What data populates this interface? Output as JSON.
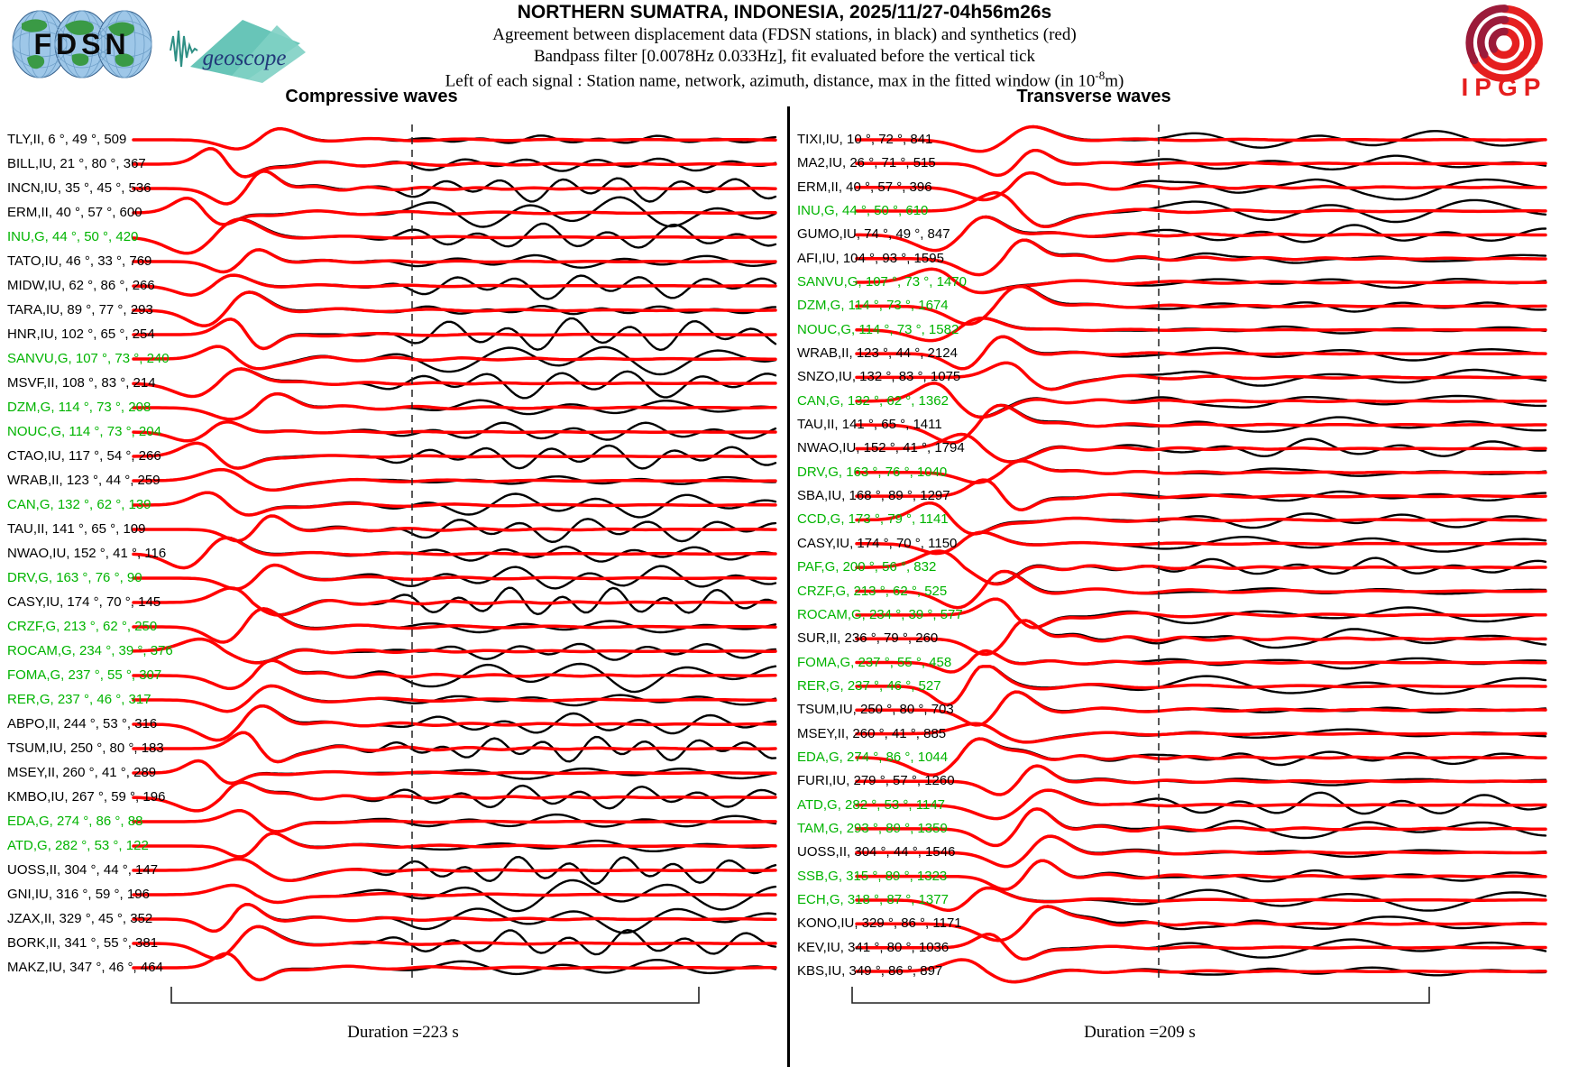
{
  "header": {
    "title": "NORTHERN SUMATRA, INDONESIA, 2025/11/27-04h56m26s",
    "subtitle1": "Agreement between displacement data (FDSN stations, in black) and synthetics (red)",
    "subtitle2": "Bandpass filter [0.0078Hz 0.033Hz], fit evaluated before the vertical tick",
    "subtitle3_pre": "Left of each signal : Station name, network, azimuth, distance, max in the fitted window (in 10",
    "subtitle3_exp": "-8",
    "subtitle3_post": "m)",
    "logos": {
      "fdsn": "FDSN",
      "geoscope": "geoscope",
      "ipgp": "IPGP"
    }
  },
  "colors": {
    "synthetic_trace": "#ff0000",
    "data_trace": "#000000",
    "geoscope_station_label": "#00b400",
    "standard_station_label": "#000000",
    "ipgp_red": "#e51f1f",
    "ipgp_dark": "#9b1b3a",
    "geoscope_teal": "#58bfb0"
  },
  "columns": [
    {
      "title": "Compressive waves",
      "duration_label": "Duration =223 s",
      "duration_s": 223,
      "stations": [
        {
          "sta": "TLY",
          "net": "II",
          "az": 6,
          "dist": 49,
          "max": 509
        },
        {
          "sta": "BILL",
          "net": "IU",
          "az": 21,
          "dist": 80,
          "max": 367
        },
        {
          "sta": "INCN",
          "net": "IU",
          "az": 35,
          "dist": 45,
          "max": 536
        },
        {
          "sta": "ERM",
          "net": "II",
          "az": 40,
          "dist": 57,
          "max": 600
        },
        {
          "sta": "INU",
          "net": "G",
          "az": 44,
          "dist": 50,
          "max": 420
        },
        {
          "sta": "TATO",
          "net": "IU",
          "az": 46,
          "dist": 33,
          "max": 769
        },
        {
          "sta": "MIDW",
          "net": "IU",
          "az": 62,
          "dist": 86,
          "max": 266
        },
        {
          "sta": "TARA",
          "net": "IU",
          "az": 89,
          "dist": 77,
          "max": 293
        },
        {
          "sta": "HNR",
          "net": "IU",
          "az": 102,
          "dist": 65,
          "max": 254
        },
        {
          "sta": "SANVU",
          "net": "G",
          "az": 107,
          "dist": 73,
          "max": 240
        },
        {
          "sta": "MSVF",
          "net": "II",
          "az": 108,
          "dist": 83,
          "max": 214
        },
        {
          "sta": "DZM",
          "net": "G",
          "az": 114,
          "dist": 73,
          "max": 208
        },
        {
          "sta": "NOUC",
          "net": "G",
          "az": 114,
          "dist": 73,
          "max": 204
        },
        {
          "sta": "CTAO",
          "net": "IU",
          "az": 117,
          "dist": 54,
          "max": 266
        },
        {
          "sta": "WRAB",
          "net": "II",
          "az": 123,
          "dist": 44,
          "max": 259
        },
        {
          "sta": "CAN",
          "net": "G",
          "az": 132,
          "dist": 62,
          "max": 139
        },
        {
          "sta": "TAU",
          "net": "II",
          "az": 141,
          "dist": 65,
          "max": 109
        },
        {
          "sta": "NWAO",
          "net": "IU",
          "az": 152,
          "dist": 41,
          "max": 116
        },
        {
          "sta": "DRV",
          "net": "G",
          "az": 163,
          "dist": 76,
          "max": 90
        },
        {
          "sta": "CASY",
          "net": "IU",
          "az": 174,
          "dist": 70,
          "max": 145
        },
        {
          "sta": "CRZF",
          "net": "G",
          "az": 213,
          "dist": 62,
          "max": 250
        },
        {
          "sta": "ROCAM",
          "net": "G",
          "az": 234,
          "dist": 39,
          "max": 376
        },
        {
          "sta": "FOMA",
          "net": "G",
          "az": 237,
          "dist": 55,
          "max": 307
        },
        {
          "sta": "RER",
          "net": "G",
          "az": 237,
          "dist": 46,
          "max": 317
        },
        {
          "sta": "ABPO",
          "net": "II",
          "az": 244,
          "dist": 53,
          "max": 316
        },
        {
          "sta": "TSUM",
          "net": "IU",
          "az": 250,
          "dist": 80,
          "max": 183
        },
        {
          "sta": "MSEY",
          "net": "II",
          "az": 260,
          "dist": 41,
          "max": 289
        },
        {
          "sta": "KMBO",
          "net": "IU",
          "az": 267,
          "dist": 59,
          "max": 196
        },
        {
          "sta": "EDA",
          "net": "G",
          "az": 274,
          "dist": 86,
          "max": 88
        },
        {
          "sta": "ATD",
          "net": "G",
          "az": 282,
          "dist": 53,
          "max": 122
        },
        {
          "sta": "UOSS",
          "net": "II",
          "az": 304,
          "dist": 44,
          "max": 147
        },
        {
          "sta": "GNI",
          "net": "IU",
          "az": 316,
          "dist": 59,
          "max": 196
        },
        {
          "sta": "JZAX",
          "net": "II",
          "az": 329,
          "dist": 45,
          "max": 352
        },
        {
          "sta": "BORK",
          "net": "II",
          "az": 341,
          "dist": 55,
          "max": 381
        },
        {
          "sta": "MAKZ",
          "net": "IU",
          "az": 347,
          "dist": 46,
          "max": 464
        }
      ]
    },
    {
      "title": "Transverse waves",
      "duration_label": "Duration =209 s",
      "duration_s": 209,
      "stations": [
        {
          "sta": "TIXI",
          "net": "IU",
          "az": 10,
          "dist": 72,
          "max": 841
        },
        {
          "sta": "MA2",
          "net": "IU",
          "az": 26,
          "dist": 71,
          "max": 515
        },
        {
          "sta": "ERM",
          "net": "II",
          "az": 40,
          "dist": 57,
          "max": 396
        },
        {
          "sta": "INU",
          "net": "G",
          "az": 44,
          "dist": 50,
          "max": 610
        },
        {
          "sta": "GUMO",
          "net": "IU",
          "az": 74,
          "dist": 49,
          "max": 847
        },
        {
          "sta": "AFI",
          "net": "IU",
          "az": 104,
          "dist": 93,
          "max": 1595
        },
        {
          "sta": "SANVU",
          "net": "G",
          "az": 107,
          "dist": 73,
          "max": 1470
        },
        {
          "sta": "DZM",
          "net": "G",
          "az": 114,
          "dist": 73,
          "max": 1674
        },
        {
          "sta": "NOUC",
          "net": "G",
          "az": 114,
          "dist": 73,
          "max": 1582
        },
        {
          "sta": "WRAB",
          "net": "II",
          "az": 123,
          "dist": 44,
          "max": 2124
        },
        {
          "sta": "SNZO",
          "net": "IU",
          "az": 132,
          "dist": 83,
          "max": 1075
        },
        {
          "sta": "CAN",
          "net": "G",
          "az": 132,
          "dist": 62,
          "max": 1362
        },
        {
          "sta": "TAU",
          "net": "II",
          "az": 141,
          "dist": 65,
          "max": 1411
        },
        {
          "sta": "NWAO",
          "net": "IU",
          "az": 152,
          "dist": 41,
          "max": 1794
        },
        {
          "sta": "DRV",
          "net": "G",
          "az": 163,
          "dist": 76,
          "max": 1040
        },
        {
          "sta": "SBA",
          "net": "IU",
          "az": 168,
          "dist": 89,
          "max": 1297
        },
        {
          "sta": "CCD",
          "net": "G",
          "az": 173,
          "dist": 79,
          "max": 1141
        },
        {
          "sta": "CASY",
          "net": "IU",
          "az": 174,
          "dist": 70,
          "max": 1150
        },
        {
          "sta": "PAF",
          "net": "G",
          "az": 200,
          "dist": 56,
          "max": 832
        },
        {
          "sta": "CRZF",
          "net": "G",
          "az": 213,
          "dist": 62,
          "max": 525
        },
        {
          "sta": "ROCAM",
          "net": "G",
          "az": 234,
          "dist": 39,
          "max": 577
        },
        {
          "sta": "SUR",
          "net": "II",
          "az": 236,
          "dist": 79,
          "max": 260
        },
        {
          "sta": "FOMA",
          "net": "G",
          "az": 237,
          "dist": 55,
          "max": 458
        },
        {
          "sta": "RER",
          "net": "G",
          "az": 237,
          "dist": 46,
          "max": 527
        },
        {
          "sta": "TSUM",
          "net": "IU",
          "az": 250,
          "dist": 80,
          "max": 703
        },
        {
          "sta": "MSEY",
          "net": "II",
          "az": 260,
          "dist": 41,
          "max": 885
        },
        {
          "sta": "EDA",
          "net": "G",
          "az": 274,
          "dist": 86,
          "max": 1044
        },
        {
          "sta": "FURI",
          "net": "IU",
          "az": 279,
          "dist": 57,
          "max": 1260
        },
        {
          "sta": "ATD",
          "net": "G",
          "az": 282,
          "dist": 53,
          "max": 1147
        },
        {
          "sta": "TAM",
          "net": "G",
          "az": 293,
          "dist": 89,
          "max": 1359
        },
        {
          "sta": "UOSS",
          "net": "II",
          "az": 304,
          "dist": 44,
          "max": 1546
        },
        {
          "sta": "SSB",
          "net": "G",
          "az": 315,
          "dist": 89,
          "max": 1323
        },
        {
          "sta": "ECH",
          "net": "G",
          "az": 318,
          "dist": 87,
          "max": 1377
        },
        {
          "sta": "KONO",
          "net": "IU",
          "az": 329,
          "dist": 86,
          "max": 1171
        },
        {
          "sta": "KEV",
          "net": "IU",
          "az": 341,
          "dist": 80,
          "max": 1036
        },
        {
          "sta": "KBS",
          "net": "IU",
          "az": 349,
          "dist": 86,
          "max": 897
        }
      ]
    }
  ],
  "chart_data": {
    "type": "line",
    "title": "NORTHERN SUMATRA, INDONESIA, 2025/11/27-04h56m26s",
    "subtitle": "Agreement between displacement data (FDSN stations, in black) and synthetics (red); bandpass 0.0078-0.033 Hz; fit evaluated before the vertical tick",
    "legend": [
      {
        "name": "displacement data (FDSN stations)",
        "color": "#000000"
      },
      {
        "name": "synthetics",
        "color": "#ff0000"
      }
    ],
    "panels": [
      {
        "title": "Compressive waves",
        "n_traces": 35,
        "duration_s": 223,
        "row_label_format": "station,network, azimuth °, distance °, max amplitude in fitted window (10^-8 m)",
        "green_rows_are_network": "G"
      },
      {
        "title": "Transverse waves",
        "n_traces": 36,
        "duration_s": 209,
        "row_label_format": "station,network, azimuth °, distance °, max amplitude in fitted window (10^-8 m)",
        "green_rows_are_network": "G"
      }
    ],
    "note": "Each row shows an observed (black) and synthetic (red) displacement waveform pair; exact sample values are not labeled in the figure."
  }
}
